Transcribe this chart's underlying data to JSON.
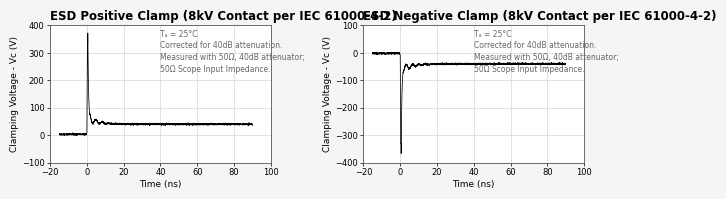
{
  "title_left": "ESD Positive Clamp (8kV Contact per IEC 61000-4-2)",
  "title_right": "ESD Negative Clamp (8kV Contact per IEC 61000-4-2)",
  "xlabel": "Time (ns)",
  "ylabel_left": "Clamping Voltage - Vᴄ (V)",
  "ylabel_right": "Clamping Voltage - Vᴄ (V)",
  "xlim": [
    -20,
    100
  ],
  "ylim_left": [
    -100,
    400
  ],
  "ylim_right": [
    -400,
    100
  ],
  "yticks_left": [
    -100,
    0,
    100,
    200,
    300,
    400
  ],
  "yticks_right": [
    -400,
    -300,
    -200,
    -100,
    0,
    100
  ],
  "xticks": [
    -20,
    0,
    20,
    40,
    60,
    80,
    100
  ],
  "annotation": "Tₐ = 25°C\nCorrected for 40dB attenuation.\nMeasured with 50Ω, 40dB attenuator;\n50Ω Scope Input Impedance.",
  "line_color": "#000000",
  "bg_color": "#f5f5f5",
  "plot_bg": "#ffffff",
  "grid_color": "#cccccc",
  "title_fontsize": 8.5,
  "label_fontsize": 6.5,
  "tick_fontsize": 6,
  "annot_fontsize": 5.5,
  "annot_color": "#666666"
}
